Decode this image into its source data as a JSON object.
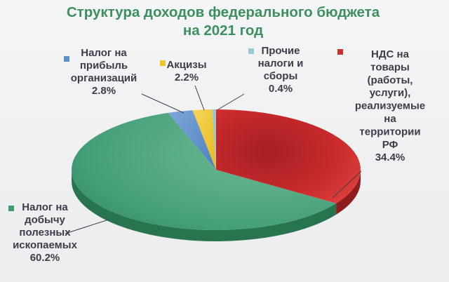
{
  "chart_data": {
    "type": "pie",
    "title": [
      "Структура доходов федерального бюджета",
      "на 2021 год"
    ],
    "legend_placement": "labels-around",
    "slices": [
      {
        "id": "nds",
        "value": 34.4,
        "color": "#cf2f2f",
        "label_lines": [
          "НДС на",
          "товары",
          "(работы,",
          "услуги),",
          "реализуемые",
          "на",
          "территории",
          "РФ",
          "34.4%"
        ]
      },
      {
        "id": "ndpi",
        "value": 60.2,
        "color": "#3f9a72",
        "label_lines": [
          "Налог на",
          "добычу",
          "полезных",
          "ископаемых",
          "60.2%"
        ]
      },
      {
        "id": "profit",
        "value": 2.8,
        "color": "#5f8fc8",
        "label_lines": [
          "Налог на",
          "прибыль",
          "организаций",
          "2.8%"
        ]
      },
      {
        "id": "excise",
        "value": 2.2,
        "color": "#efc531",
        "label_lines": [
          "Акцизы",
          "2.2%"
        ]
      },
      {
        "id": "other",
        "value": 0.4,
        "color": "#9ac6d6",
        "label_lines": [
          "Прочие",
          "налоги и",
          "сборы",
          "0.4%"
        ]
      }
    ]
  }
}
